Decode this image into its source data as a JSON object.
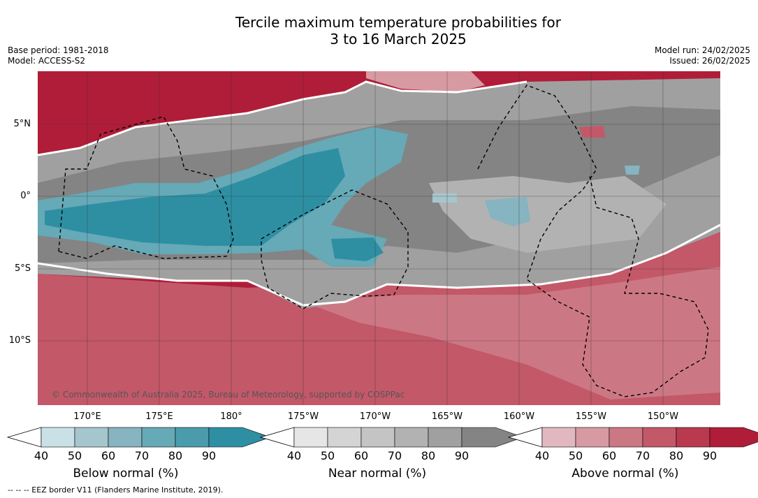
{
  "title_line1": "Tercile maximum temperature probabilities for",
  "title_line2": "3 to 16 March 2025",
  "base_period": "Base period: 1981-2018",
  "model": "Model: ACCESS-S2",
  "model_run": "Model run: 24/02/2025",
  "issued": "Issued: 26/02/2025",
  "copyright": "© Commonwealth of Australia 2025, Bureau of Meteorology, supported by COSPPac",
  "lat_labels": [
    "5°N",
    "0°",
    "5°S",
    "10°S"
  ],
  "lon_labels": [
    "170°E",
    "175°E",
    "180°",
    "175°W",
    "170°W",
    "165°W",
    "160°W",
    "155°W",
    "150°W"
  ],
  "colorbars": [
    {
      "label": "Below normal (%)",
      "ticks": [
        "40",
        "50",
        "60",
        "70",
        "80",
        "90"
      ],
      "colors": [
        "#c9e0e7",
        "#a6c6ce",
        "#86b4c0",
        "#66a9b7",
        "#4a9cac",
        "#2e8fa3"
      ]
    },
    {
      "label": "Near normal (%)",
      "ticks": [
        "40",
        "50",
        "60",
        "70",
        "80",
        "90"
      ],
      "colors": [
        "#e6e6e6",
        "#d4d4d4",
        "#c4c4c4",
        "#b2b2b2",
        "#a0a0a0",
        "#848484"
      ]
    },
    {
      "label": "Above normal (%)",
      "ticks": [
        "40",
        "50",
        "60",
        "70",
        "80",
        "90"
      ],
      "colors": [
        "#e2b8bf",
        "#d79aa2",
        "#cc7884",
        "#c35869",
        "#b93a4f",
        "#b01d38"
      ]
    }
  ],
  "footnote": "--  --  -- EEZ border V11 (Flanders Marine Institute, 2019)."
}
